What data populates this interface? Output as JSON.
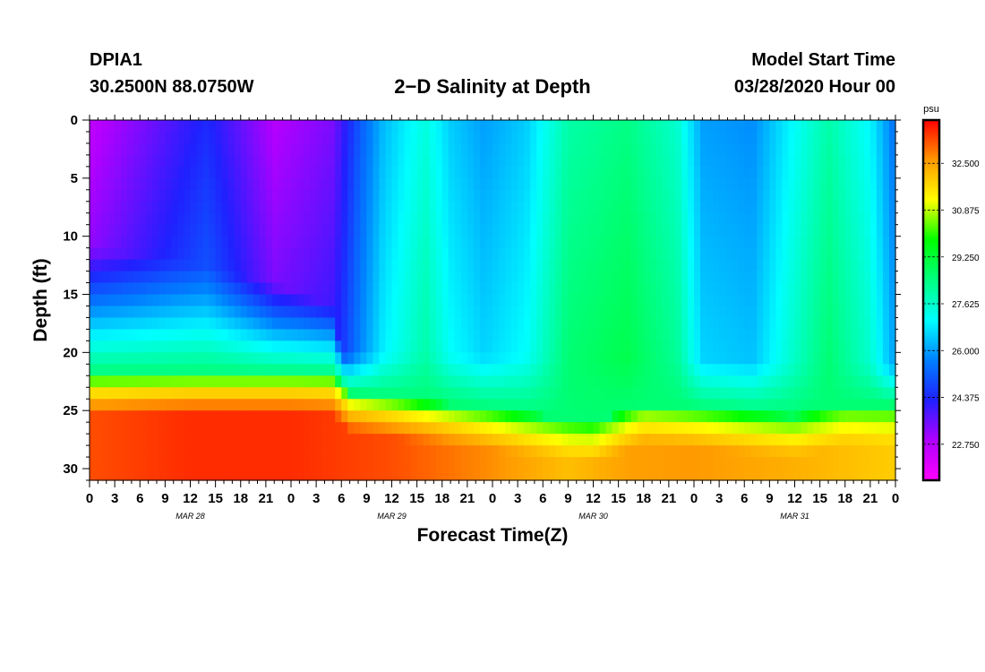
{
  "header": {
    "station": "DPIA1",
    "coords": "30.2500N 88.0750W",
    "title": "2−D Salinity at Depth",
    "start_label": "Model Start Time",
    "start_value": "03/28/2020 Hour 00"
  },
  "chart_data": {
    "type": "heatmap",
    "title": "2−D Salinity at Depth",
    "xlabel": "Forecast Time(Z)",
    "ylabel": "Depth (ft)",
    "x_range_hours": [
      0,
      96
    ],
    "y_range_ft": [
      0,
      31
    ],
    "x_tick_labels": [
      "0",
      "3",
      "6",
      "9",
      "12",
      "15",
      "18",
      "21",
      "0",
      "3",
      "6",
      "9",
      "12",
      "15",
      "18",
      "21",
      "0",
      "3",
      "6",
      "9",
      "12",
      "15",
      "18",
      "21",
      "0",
      "3",
      "6",
      "9",
      "12",
      "15",
      "18",
      "21",
      "0"
    ],
    "x_tick_hours": [
      0,
      3,
      6,
      9,
      12,
      15,
      18,
      21,
      24,
      27,
      30,
      33,
      36,
      39,
      42,
      45,
      48,
      51,
      54,
      57,
      60,
      63,
      66,
      69,
      72,
      75,
      78,
      81,
      84,
      87,
      90,
      93,
      96
    ],
    "y_tick_labels": [
      "0",
      "5",
      "10",
      "15",
      "20",
      "25",
      "30"
    ],
    "y_tick_values": [
      0,
      5,
      10,
      15,
      20,
      25,
      30
    ],
    "date_labels": [
      {
        "text": "MAR 28",
        "hour": 12
      },
      {
        "text": "MAR 29",
        "hour": 36
      },
      {
        "text": "MAR 30",
        "hour": 60
      },
      {
        "text": "MAR 31",
        "hour": 84
      }
    ],
    "colorbar": {
      "unit": "psu",
      "range": [
        21.5,
        34.0
      ],
      "tick_values": [
        22.75,
        24.375,
        26.0,
        27.625,
        29.25,
        30.875,
        32.5
      ],
      "tick_labels": [
        "22.750",
        "24.375",
        "26.000",
        "27.625",
        "29.250",
        "30.875",
        "32.500"
      ],
      "colors": [
        "#ff00ff",
        "#b000ff",
        "#2020ff",
        "#0080ff",
        "#00ffff",
        "#00ff80",
        "#00ff00",
        "#ffff00",
        "#ff9900",
        "#ff0000"
      ]
    },
    "surface_salinity": [
      {
        "hour": 0,
        "psu": 22.6
      },
      {
        "hour": 8,
        "psu": 23.6
      },
      {
        "hour": 14,
        "psu": 24.4
      },
      {
        "hour": 22,
        "psu": 22.8
      },
      {
        "hour": 29,
        "psu": 23.4
      },
      {
        "hour": 32,
        "psu": 25.0
      },
      {
        "hour": 35,
        "psu": 26.3
      },
      {
        "hour": 40,
        "psu": 27.4
      },
      {
        "hour": 43,
        "psu": 26.5
      },
      {
        "hour": 47,
        "psu": 26.0
      },
      {
        "hour": 52,
        "psu": 26.5
      },
      {
        "hour": 57,
        "psu": 28.0
      },
      {
        "hour": 64,
        "psu": 28.4
      },
      {
        "hour": 70,
        "psu": 27.6
      },
      {
        "hour": 73,
        "psu": 26.0
      },
      {
        "hour": 79,
        "psu": 25.8
      },
      {
        "hour": 84,
        "psu": 27.1
      },
      {
        "hour": 88,
        "psu": 28.0
      },
      {
        "hour": 93,
        "psu": 27.0
      },
      {
        "hour": 96,
        "psu": 25.4
      }
    ],
    "bottom_salinity": [
      {
        "hour": 0,
        "psu": 33.3
      },
      {
        "hour": 12,
        "psu": 33.6
      },
      {
        "hour": 24,
        "psu": 33.6
      },
      {
        "hour": 36,
        "psu": 33.3
      },
      {
        "hour": 48,
        "psu": 32.7
      },
      {
        "hour": 57,
        "psu": 32.1
      },
      {
        "hour": 64,
        "psu": 32.5
      },
      {
        "hour": 72,
        "psu": 32.6
      },
      {
        "hour": 84,
        "psu": 32.3
      },
      {
        "hour": 96,
        "psu": 31.9
      }
    ],
    "upper_layer_depth_ft": [
      {
        "hour": 0,
        "depth": 11
      },
      {
        "hour": 10,
        "depth": 12
      },
      {
        "hour": 22,
        "depth": 14
      },
      {
        "hour": 29,
        "depth": 16
      },
      {
        "hour": 30,
        "depth": 20
      },
      {
        "hour": 96,
        "depth": 21
      }
    ],
    "halocline_depth_ft": [
      {
        "hour": 0,
        "depth": 22
      },
      {
        "hour": 29,
        "depth": 22
      },
      {
        "hour": 31,
        "depth": 23.5
      },
      {
        "hour": 60,
        "depth": 26
      },
      {
        "hour": 66,
        "depth": 24.5
      },
      {
        "hour": 84,
        "depth": 25.5
      },
      {
        "hour": 90,
        "depth": 24.5
      },
      {
        "hour": 96,
        "depth": 24.5
      }
    ]
  }
}
